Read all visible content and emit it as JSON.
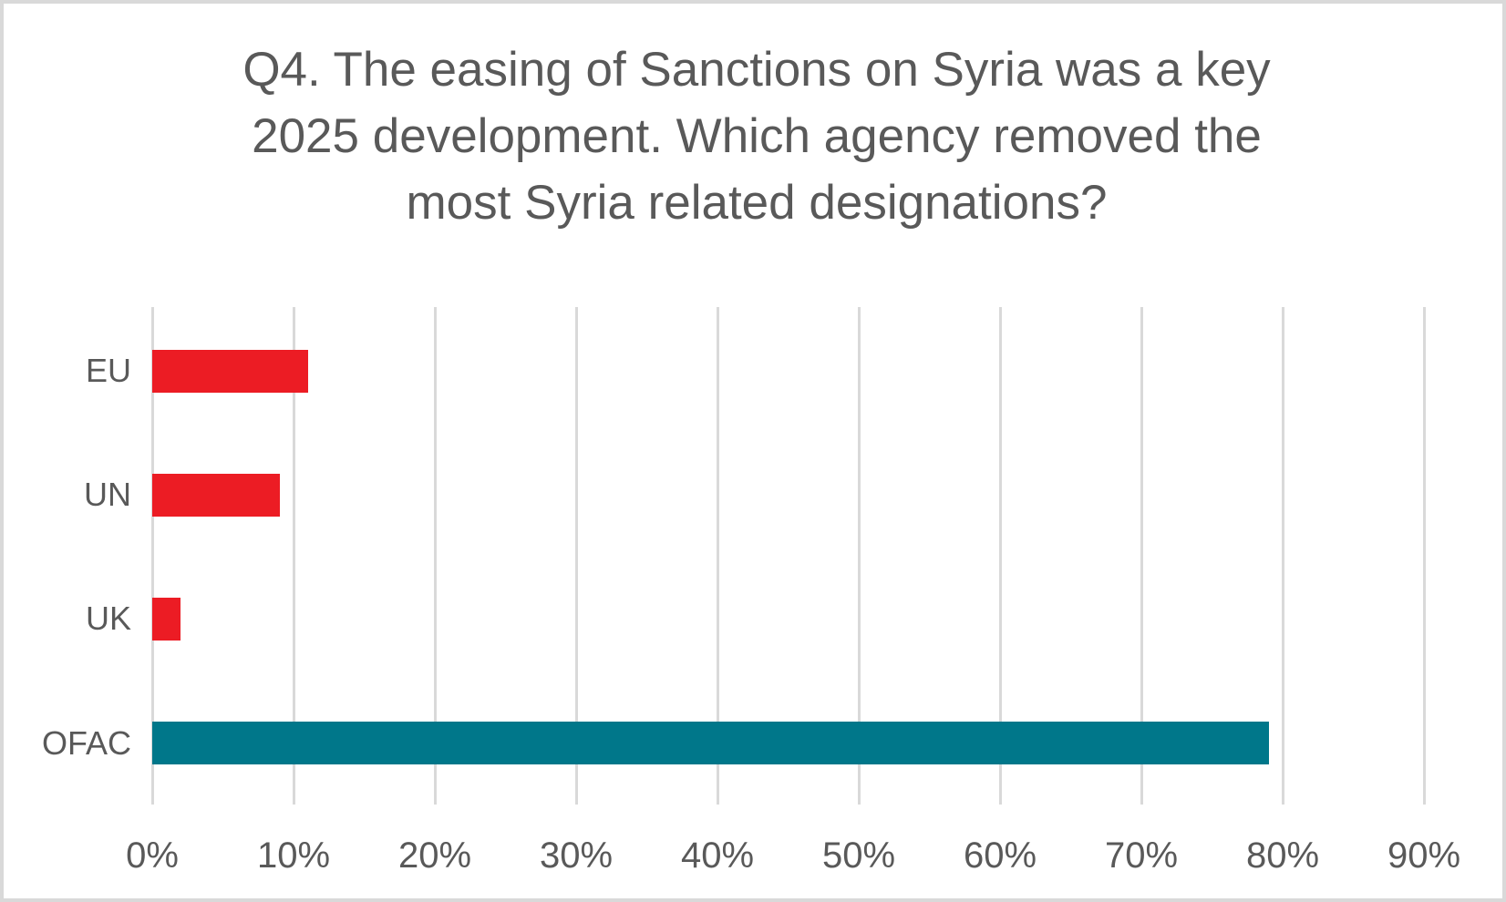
{
  "title": {
    "lines": [
      "Q4. The easing of Sanctions on Syria was a key",
      "2025 development. Which agency removed the",
      "most Syria related designations?"
    ],
    "text": "Q4. The easing of Sanctions on Syria was a key 2025 development. Which agency removed the most Syria related designations?"
  },
  "chart_data": {
    "type": "bar",
    "orientation": "horizontal",
    "title": "Q4. The easing of Sanctions on Syria was a key 2025 development. Which agency removed the most Syria related designations?",
    "categories": [
      "EU",
      "UN",
      "UK",
      "OFAC"
    ],
    "values": [
      11,
      9,
      2,
      79
    ],
    "value_unit": "percent",
    "bar_colors": [
      "#EC1C24",
      "#EC1C24",
      "#EC1C24",
      "#00778A"
    ],
    "x_ticks": [
      "0%",
      "10%",
      "20%",
      "30%",
      "40%",
      "50%",
      "60%",
      "70%",
      "80%",
      "90%"
    ],
    "x_tick_values": [
      0,
      10,
      20,
      30,
      40,
      50,
      60,
      70,
      80,
      90
    ],
    "xlim": [
      0,
      90
    ],
    "xlabel": "",
    "ylabel": "",
    "grid": "vertical gridlines on",
    "legend": "none",
    "data_labels": "none"
  },
  "colors": {
    "bar_red": "#EC1C24",
    "bar_teal": "#00778A",
    "text_gray": "#595959",
    "gridline_gray": "#D9D9D9",
    "frame_border": "#D9D9D9",
    "background": "#FFFFFF"
  }
}
